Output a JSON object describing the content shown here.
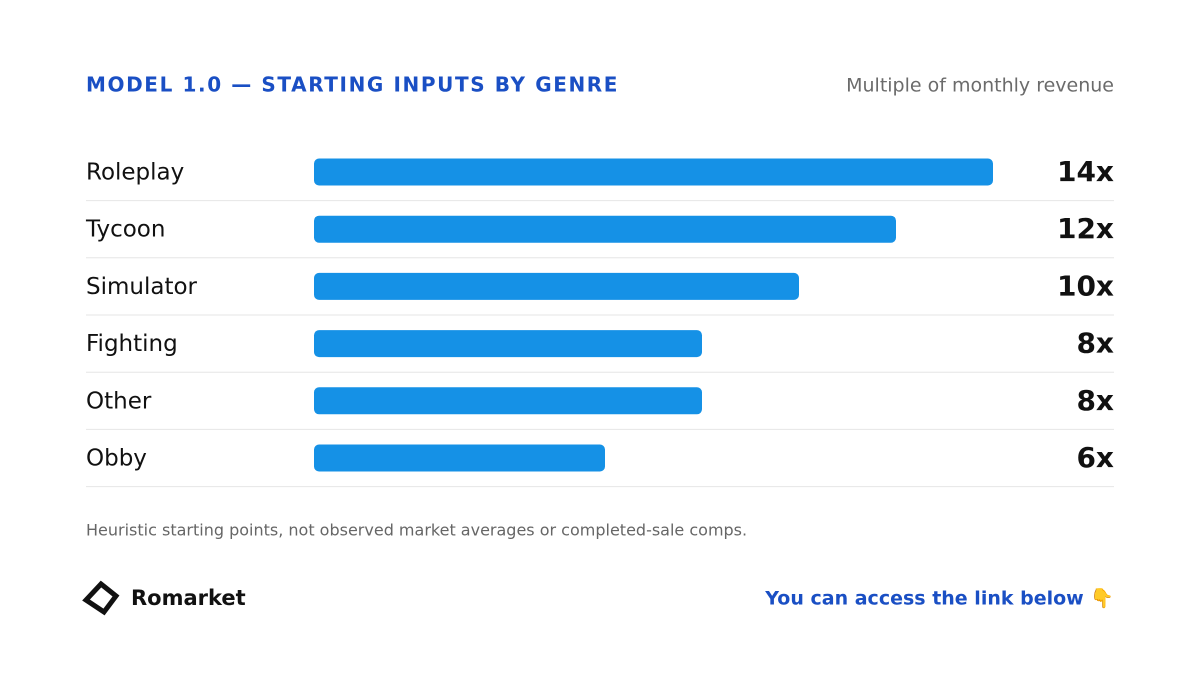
{
  "chart_data": {
    "type": "bar",
    "orientation": "horizontal",
    "title": "MODEL 1.0 — STARTING INPUTS BY GENRE",
    "subtitle": "Multiple of monthly revenue",
    "categories": [
      "Roleplay",
      "Tycoon",
      "Simulator",
      "Fighting",
      "Other",
      "Obby"
    ],
    "values": [
      14,
      12,
      10,
      8,
      8,
      6
    ],
    "value_labels": [
      "14x",
      "12x",
      "10x",
      "8x",
      "8x",
      "6x"
    ],
    "color": "#1591e6",
    "note": "Heuristic starting points, not observed market averages or completed-sale comps."
  },
  "footer": {
    "brand": "Romarket",
    "cta": "You can access the link below 👇"
  }
}
